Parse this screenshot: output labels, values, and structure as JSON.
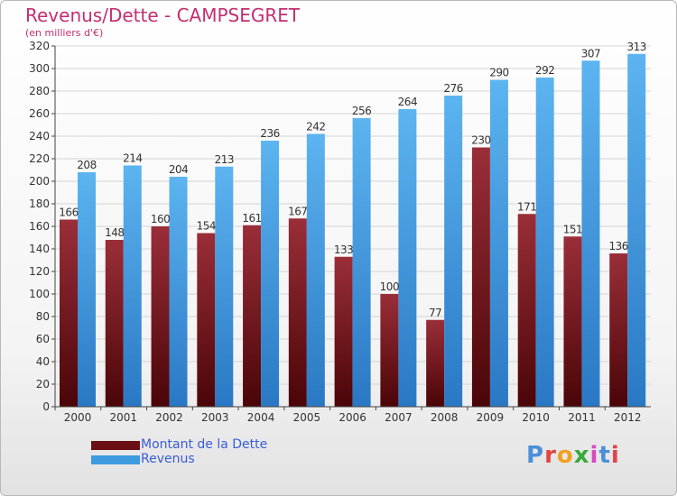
{
  "chart_data": {
    "type": "bar",
    "title": "Revenus/Dette - CAMPSEGRET",
    "subtitle": "(en milliers d'€)",
    "categories": [
      "2000",
      "2001",
      "2002",
      "2003",
      "2004",
      "2005",
      "2006",
      "2007",
      "2008",
      "2009",
      "2010",
      "2011",
      "2012"
    ],
    "series": [
      {
        "name": "Montant de la Dette",
        "values": [
          166,
          148,
          160,
          154,
          161,
          167,
          133,
          100,
          77,
          230,
          171,
          151,
          136
        ],
        "color": "#7a1a22"
      },
      {
        "name": "Revenus",
        "values": [
          208,
          214,
          204,
          213,
          236,
          242,
          256,
          264,
          276,
          290,
          292,
          307,
          313
        ],
        "color": "#3e9be0"
      }
    ],
    "ylim": [
      0,
      320
    ],
    "yticks": [
      0,
      20,
      40,
      60,
      80,
      100,
      120,
      140,
      160,
      180,
      200,
      220,
      240,
      260,
      280,
      300,
      320
    ],
    "grid": true,
    "legend_position": "bottom-left"
  },
  "legend": {
    "items": [
      {
        "label": "Montant de la Dette",
        "color": "#6b0f14"
      },
      {
        "label": "Revenus",
        "color": "#3e9be0"
      }
    ]
  },
  "logo": {
    "text": "Proxiti"
  }
}
